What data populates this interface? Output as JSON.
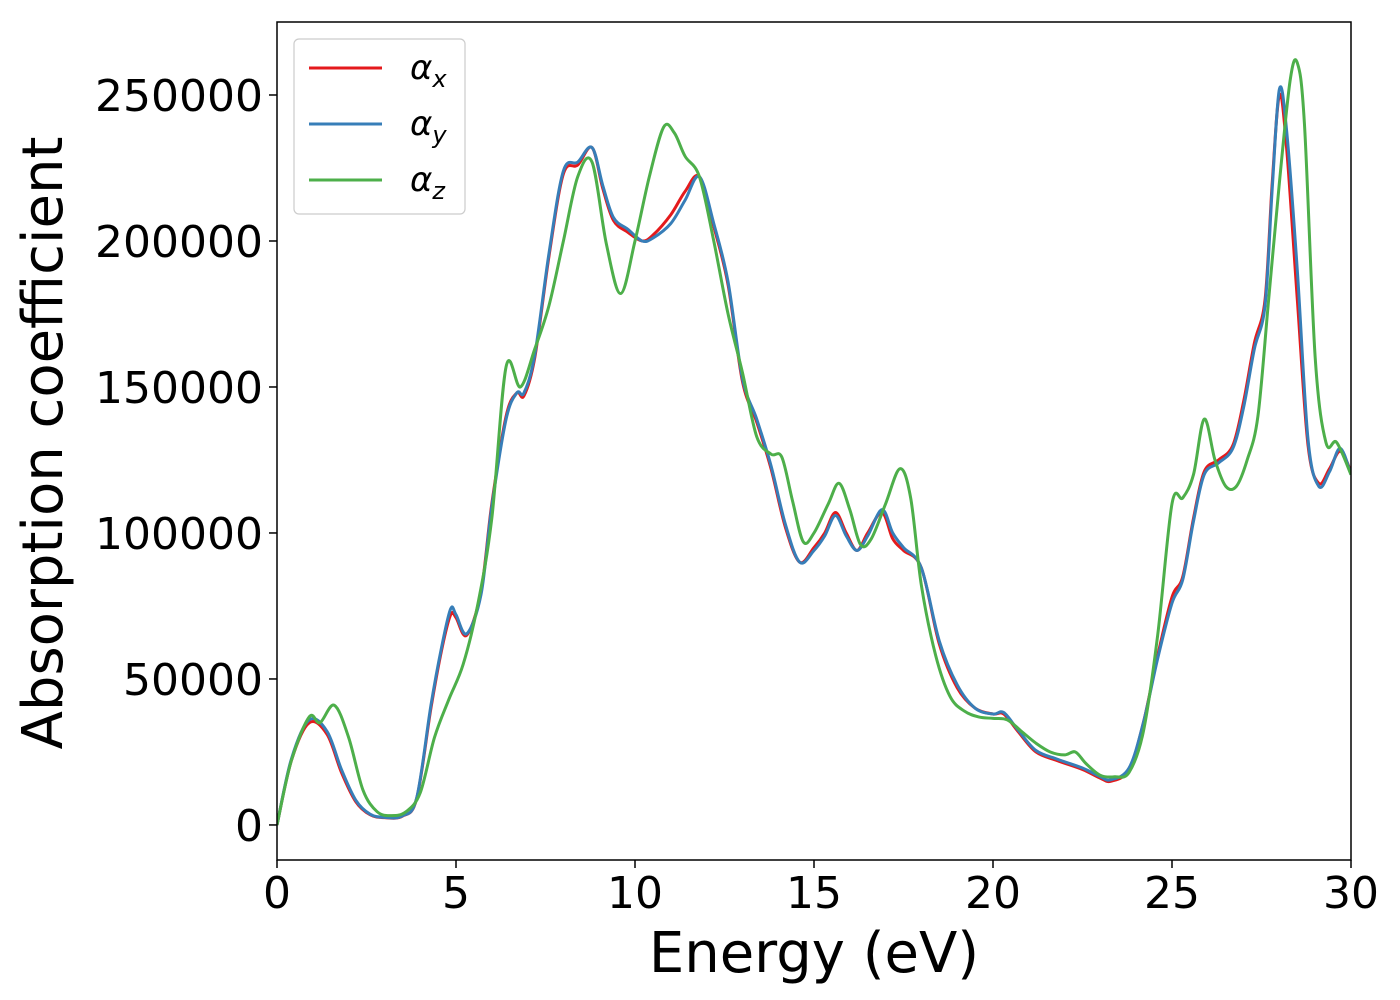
{
  "chart_data": {
    "type": "line",
    "xlabel": "Energy (eV)",
    "ylabel": "Absorption coefficient",
    "xlim": [
      0,
      30
    ],
    "ylim": [
      -12000,
      275000
    ],
    "xticks": [
      0,
      5,
      10,
      15,
      20,
      25,
      30
    ],
    "xtick_labels": [
      "0",
      "5",
      "10",
      "15",
      "20",
      "25",
      "30"
    ],
    "yticks": [
      0,
      50000,
      100000,
      150000,
      200000,
      250000
    ],
    "ytick_labels": [
      "0",
      "50000",
      "100000",
      "150000",
      "200000",
      "250000"
    ],
    "grid": false,
    "legend_position": "top-left",
    "series": [
      {
        "name": "α",
        "subscript": "x",
        "color": "#e41a1c",
        "x": [
          0,
          0.4,
          0.9,
          1.4,
          1.8,
          2.2,
          2.6,
          3.0,
          3.5,
          3.9,
          4.3,
          4.6,
          4.85,
          5.0,
          5.3,
          5.7,
          6.0,
          6.4,
          6.7,
          6.9,
          7.2,
          7.6,
          8.0,
          8.4,
          8.8,
          9.1,
          9.4,
          9.8,
          10.2,
          10.5,
          11.0,
          11.4,
          11.8,
          12.2,
          12.6,
          13.0,
          13.4,
          13.8,
          14.2,
          14.6,
          15.0,
          15.3,
          15.6,
          15.9,
          16.2,
          16.5,
          16.9,
          17.2,
          17.5,
          18.0,
          18.5,
          19.0,
          19.5,
          20.0,
          20.3,
          20.7,
          21.2,
          21.8,
          22.5,
          23.0,
          23.3,
          23.8,
          24.2,
          24.6,
          25.0,
          25.3,
          25.6,
          25.9,
          26.3,
          26.7,
          27.0,
          27.3,
          27.6,
          27.8,
          28.0,
          28.2,
          28.5,
          28.8,
          29.1,
          29.4,
          29.7,
          30.0
        ],
        "values": [
          0,
          22000,
          35000,
          31000,
          18000,
          8000,
          3500,
          2500,
          3000,
          9000,
          40000,
          60000,
          72000,
          71000,
          65000,
          80000,
          110000,
          140000,
          148000,
          147000,
          160000,
          195000,
          223000,
          226000,
          232000,
          218000,
          207000,
          203000,
          200000,
          202000,
          209000,
          217000,
          222000,
          205000,
          185000,
          152000,
          138000,
          122000,
          102000,
          90000,
          95000,
          100000,
          107000,
          100000,
          94000,
          100000,
          107000,
          98000,
          94000,
          88000,
          62000,
          47000,
          40000,
          38000,
          38000,
          32000,
          25000,
          22000,
          19000,
          16000,
          15000,
          19000,
          35000,
          58000,
          78000,
          85000,
          105000,
          121000,
          125000,
          130000,
          145000,
          165000,
          180000,
          220000,
          250000,
          232000,
          180000,
          130000,
          117000,
          122000,
          128000,
          121000
        ]
      },
      {
        "name": "α",
        "subscript": "y",
        "color": "#377eb8",
        "x": [
          0,
          0.4,
          0.9,
          1.4,
          1.8,
          2.2,
          2.6,
          3.0,
          3.5,
          3.9,
          4.3,
          4.6,
          4.85,
          5.0,
          5.3,
          5.7,
          6.0,
          6.4,
          6.7,
          6.9,
          7.2,
          7.6,
          8.0,
          8.4,
          8.8,
          9.1,
          9.4,
          9.8,
          10.2,
          10.5,
          11.0,
          11.4,
          11.8,
          12.2,
          12.6,
          13.0,
          13.4,
          13.8,
          14.2,
          14.6,
          15.0,
          15.3,
          15.6,
          15.9,
          16.2,
          16.5,
          16.9,
          17.2,
          17.5,
          18.0,
          18.5,
          19.0,
          19.5,
          20.0,
          20.3,
          20.7,
          21.2,
          21.8,
          22.5,
          23.0,
          23.3,
          23.8,
          24.2,
          24.6,
          25.0,
          25.3,
          25.6,
          25.9,
          26.3,
          26.7,
          27.0,
          27.3,
          27.6,
          27.8,
          28.0,
          28.2,
          28.5,
          28.8,
          29.1,
          29.4,
          29.7,
          30.0
        ],
        "values": [
          0,
          22500,
          36000,
          32000,
          19000,
          8500,
          3700,
          2600,
          3100,
          9200,
          41000,
          61000,
          74000,
          72000,
          65500,
          79000,
          109000,
          139000,
          148000,
          148000,
          161000,
          196000,
          224000,
          227000,
          232000,
          219000,
          208000,
          204000,
          200000,
          201000,
          206000,
          214000,
          222000,
          206000,
          186000,
          153000,
          139000,
          123000,
          103000,
          90000,
          94000,
          99000,
          106000,
          99000,
          94000,
          99000,
          108000,
          100000,
          95000,
          88000,
          63000,
          48000,
          40000,
          38000,
          38500,
          32500,
          25500,
          22500,
          19500,
          16500,
          15500,
          19500,
          35000,
          57000,
          76000,
          84000,
          104000,
          120000,
          124000,
          129000,
          143000,
          163000,
          178000,
          218000,
          252000,
          238000,
          190000,
          132000,
          116000,
          121000,
          129000,
          120000
        ]
      },
      {
        "name": "α",
        "subscript": "z",
        "color": "#4daf4a",
        "x": [
          0,
          0.4,
          0.9,
          1.2,
          1.6,
          2.0,
          2.4,
          2.8,
          3.2,
          3.6,
          4.0,
          4.4,
          4.8,
          5.2,
          5.6,
          6.0,
          6.4,
          6.8,
          7.2,
          7.6,
          8.0,
          8.4,
          8.8,
          9.2,
          9.6,
          10.0,
          10.4,
          10.8,
          11.1,
          11.4,
          11.8,
          12.2,
          12.6,
          13.0,
          13.4,
          13.8,
          14.1,
          14.4,
          14.7,
          15.0,
          15.4,
          15.7,
          16.0,
          16.3,
          16.6,
          17.0,
          17.4,
          17.7,
          18.0,
          18.4,
          18.8,
          19.2,
          19.6,
          20.0,
          20.4,
          20.8,
          21.2,
          21.6,
          22.0,
          22.3,
          22.6,
          23.0,
          23.4,
          23.8,
          24.2,
          24.6,
          25.0,
          25.3,
          25.6,
          25.9,
          26.2,
          26.5,
          26.8,
          27.1,
          27.4,
          27.7,
          28.0,
          28.3,
          28.5,
          28.7,
          29.0,
          29.3,
          29.6,
          30.0
        ],
        "values": [
          0,
          22000,
          37000,
          35000,
          41000,
          30000,
          12000,
          4500,
          3200,
          4500,
          11000,
          30000,
          43000,
          55000,
          75000,
          105000,
          157000,
          150000,
          163000,
          178000,
          200000,
          222000,
          227000,
          199000,
          182000,
          200000,
          222000,
          239000,
          237000,
          229000,
          222000,
          200000,
          175000,
          155000,
          133000,
          127000,
          126000,
          111000,
          97000,
          100000,
          110000,
          117000,
          108000,
          96000,
          98000,
          110000,
          122000,
          112000,
          82000,
          58000,
          44000,
          39000,
          37000,
          36500,
          36000,
          32000,
          28000,
          25000,
          24000,
          25000,
          21000,
          17000,
          16500,
          18000,
          32000,
          65000,
          110000,
          112000,
          120000,
          139000,
          125000,
          116000,
          116000,
          125000,
          140000,
          180000,
          220000,
          255000,
          261000,
          240000,
          160000,
          131000,
          131000,
          120000
        ]
      }
    ]
  }
}
